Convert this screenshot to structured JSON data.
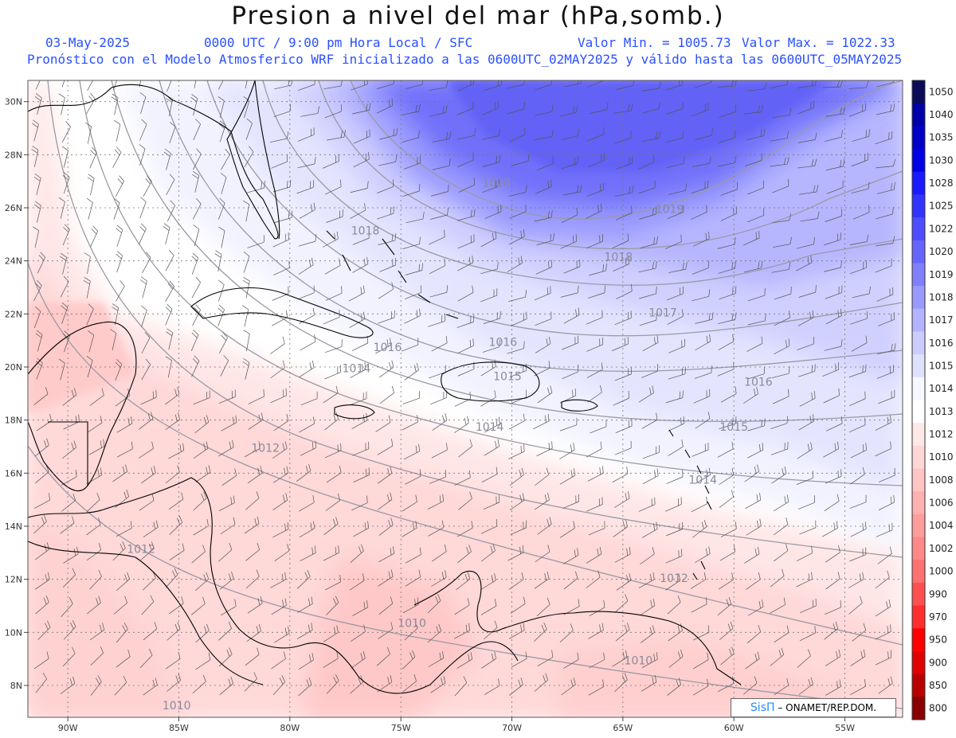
{
  "title": "Presion a nivel del mar (hPa,somb.)",
  "header": {
    "date": "03-May-2025",
    "time": "0000 UTC / 9:00 pm Hora Local / SFC",
    "min": "Valor Min. = 1005.73",
    "max": "Valor Max. = 1022.33",
    "forecast": "Pronóstico con el Modelo Atmosferico WRF inicializado a las 0600UTC_02MAY2025 y válido hasta las  0600UTC_05MAY2025"
  },
  "axes": {
    "lat_labels": [
      "30N",
      "28N",
      "26N",
      "24N",
      "22N",
      "20N",
      "18N",
      "16N",
      "14N",
      "12N",
      "10N",
      "8N"
    ],
    "lon_labels": [
      "90W",
      "85W",
      "80W",
      "75W",
      "70W",
      "65W",
      "60W",
      "55W"
    ]
  },
  "colorbar": [
    "1050",
    "1040",
    "1035",
    "1030",
    "1028",
    "1025",
    "1022",
    "1020",
    "1019",
    "1018",
    "1017",
    "1016",
    "1015",
    "1014",
    "1013",
    "1012",
    "1010",
    "1008",
    "1006",
    "1004",
    "1002",
    "1000",
    "990",
    "970",
    "950",
    "900",
    "850",
    "800"
  ],
  "colorbar_colors": [
    "#0b0b5a",
    "#0000a8",
    "#0000c8",
    "#0000e6",
    "#1a1aff",
    "#3333ff",
    "#4d4dff",
    "#6666ff",
    "#8080ff",
    "#9999ff",
    "#b3b3ff",
    "#ccccff",
    "#e0e0ff",
    "#f7f7ff",
    "#ffffff",
    "#ffe8e8",
    "#ffd6d6",
    "#ffc4c4",
    "#ffb0b0",
    "#ff9c9c",
    "#ff8888",
    "#ff7070",
    "#ff5050",
    "#ff2e2e",
    "#ff0000",
    "#e00000",
    "#b80000",
    "#8a0000"
  ],
  "isobar_labels": [
    {
      "text": "1020",
      "lon": -70.7,
      "lat": 26.8
    },
    {
      "text": "1019",
      "lon": -62.9,
      "lat": 25.8
    },
    {
      "text": "1018",
      "lon": -76.6,
      "lat": 25.0
    },
    {
      "text": "1018",
      "lon": -65.2,
      "lat": 24.0
    },
    {
      "text": "1017",
      "lon": -63.2,
      "lat": 21.9
    },
    {
      "text": "1016",
      "lon": -70.4,
      "lat": 20.8
    },
    {
      "text": "1016",
      "lon": -75.6,
      "lat": 20.6
    },
    {
      "text": "1016",
      "lon": -58.9,
      "lat": 19.3
    },
    {
      "text": "1015",
      "lon": -70.2,
      "lat": 19.5
    },
    {
      "text": "1015",
      "lon": -60.0,
      "lat": 17.6
    },
    {
      "text": "1014",
      "lon": -77.0,
      "lat": 19.8
    },
    {
      "text": "1014",
      "lon": -71.0,
      "lat": 17.6
    },
    {
      "text": "1014",
      "lon": -61.4,
      "lat": 15.6
    },
    {
      "text": "1012",
      "lon": -81.1,
      "lat": 16.8
    },
    {
      "text": "1012",
      "lon": -86.7,
      "lat": 13.0
    },
    {
      "text": "1012",
      "lon": -62.7,
      "lat": 11.9
    },
    {
      "text": "1010",
      "lon": -74.5,
      "lat": 10.2
    },
    {
      "text": "1010",
      "lon": -64.3,
      "lat": 8.8
    },
    {
      "text": "1010",
      "lon": -85.1,
      "lat": 7.1
    }
  ],
  "credit": {
    "sis": "SisΠ",
    "rest": " – ONAMET/REP.DOM."
  }
}
